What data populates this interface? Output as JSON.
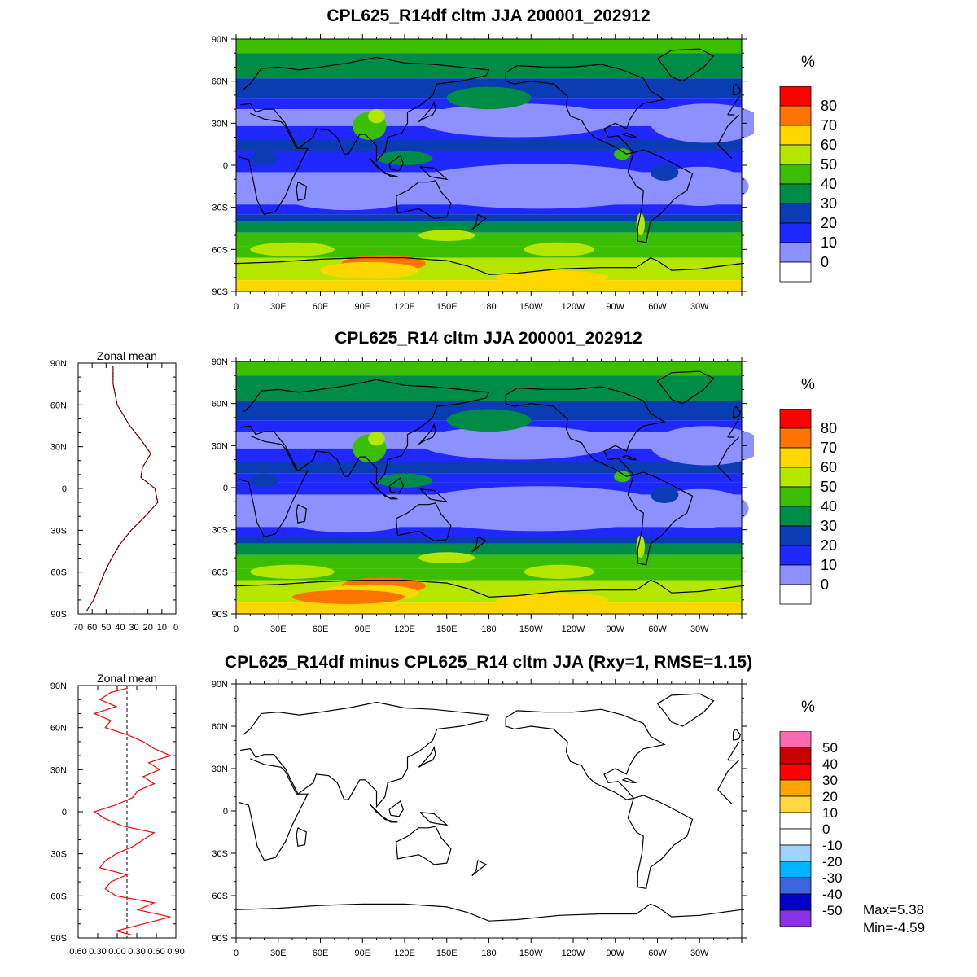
{
  "panels": [
    {
      "id": "top",
      "title": "CPL625_R14df cltm JJA 200001_202912",
      "colorbar": {
        "unit": "%",
        "labels": [
          "80",
          "70",
          "60",
          "50",
          "40",
          "30",
          "20",
          "10",
          "0"
        ],
        "colors": [
          "#ff0000",
          "#ff7300",
          "#ffd700",
          "#b4e600",
          "#3cbe00",
          "#008c46",
          "#0a3cb4",
          "#1e28ff",
          "#8c91ff",
          "#ffffff"
        ]
      }
    },
    {
      "id": "middle",
      "title": "CPL625_R14 cltm JJA 200001_202912",
      "zonal_title": "Zonal mean",
      "zonal_xticks": [
        "70",
        "60",
        "50",
        "40",
        "30",
        "20",
        "10",
        "0"
      ],
      "colorbar": {
        "unit": "%",
        "labels": [
          "80",
          "70",
          "60",
          "50",
          "40",
          "30",
          "20",
          "10",
          "0"
        ],
        "colors": [
          "#ff0000",
          "#ff7300",
          "#ffd700",
          "#b4e600",
          "#3cbe00",
          "#008c46",
          "#0a3cb4",
          "#1e28ff",
          "#8c91ff",
          "#ffffff"
        ]
      }
    },
    {
      "id": "bottom",
      "title": "CPL625_R14df minus CPL625_R14 cltm JJA (Rxy=1, RMSE=1.15)",
      "zonal_title": "Zonal mean",
      "zonal_xticks": [
        "0.60",
        "0.30",
        "0.00",
        "0.30",
        "0.60",
        "0.90"
      ],
      "colorbar": {
        "unit": "%",
        "labels": [
          "50",
          "40",
          "30",
          "20",
          "10",
          "0",
          "-10",
          "-20",
          "-30",
          "-40",
          "-50"
        ],
        "colors": [
          "#ff69b4",
          "#c80000",
          "#ff0000",
          "#ffa500",
          "#ffd740",
          "#ffffff",
          "#ffffff",
          "#a0d2ff",
          "#00b4ff",
          "#3c64dc",
          "#0000c8",
          "#8c32e6"
        ]
      },
      "stats": {
        "max": "Max=5.38",
        "min": "Min=-4.59"
      }
    }
  ],
  "map_axes": {
    "lat_labels": [
      "90N",
      "60N",
      "30N",
      "0",
      "30S",
      "60S",
      "90S"
    ],
    "lon_labels": [
      "0",
      "30E",
      "60E",
      "90E",
      "120E",
      "150E",
      "180",
      "150W",
      "120W",
      "90W",
      "60W",
      "30W"
    ]
  },
  "chart_data": [
    {
      "type": "heatmap",
      "title": "CPL625_R14df cltm JJA 200001_202912",
      "variable": "cltm",
      "unit": "%",
      "contour_levels": [
        0,
        10,
        20,
        30,
        40,
        50,
        60,
        70,
        80
      ],
      "zonal_band_approx": [
        {
          "lat_range": [
            "60N",
            "90N"
          ],
          "value": 40
        },
        {
          "lat_range": [
            "30N",
            "60N"
          ],
          "value": 20
        },
        {
          "lat_range": [
            "10N",
            "30N"
          ],
          "value": 10
        },
        {
          "lat_range": [
            "0",
            "10N"
          ],
          "value": 20
        },
        {
          "lat_range": [
            "30S",
            "0"
          ],
          "value": 5
        },
        {
          "lat_range": [
            "60S",
            "30S"
          ],
          "value": 40
        },
        {
          "lat_range": [
            "90S",
            "60S"
          ],
          "value": 60
        }
      ]
    },
    {
      "type": "heatmap",
      "title": "CPL625_R14 cltm JJA 200001_202912",
      "variable": "cltm",
      "unit": "%",
      "contour_levels": [
        0,
        10,
        20,
        30,
        40,
        50,
        60,
        70,
        80
      ]
    },
    {
      "type": "line",
      "title": "Zonal mean",
      "xlim": [
        70,
        0
      ],
      "ylim": [
        "90S",
        "90N"
      ],
      "y": [
        -88,
        -80,
        -70,
        -60,
        -50,
        -40,
        -30,
        -20,
        -10,
        0,
        8,
        15,
        25,
        35,
        45,
        60,
        75,
        88
      ],
      "x": [
        64,
        59,
        55,
        51,
        46,
        40,
        32,
        22,
        13,
        15,
        25,
        24,
        18,
        25,
        33,
        42,
        45,
        45
      ]
    },
    {
      "type": "heatmap",
      "title": "CPL625_R14df minus CPL625_R14 cltm JJA (Rxy=1, RMSE=1.15)",
      "variable": "cltm difference",
      "unit": "%",
      "contour_levels": [
        -50,
        -40,
        -30,
        -20,
        -10,
        0,
        10,
        20,
        30,
        40,
        50
      ],
      "max": 5.38,
      "min": -4.59
    },
    {
      "type": "line",
      "title": "Zonal mean",
      "xlim": [
        -0.9,
        0.9
      ],
      "ylim": [
        "90S",
        "90N"
      ],
      "y": [
        -88,
        -85,
        -80,
        -75,
        -70,
        -65,
        -60,
        -55,
        -50,
        -45,
        -40,
        -35,
        -30,
        -25,
        -20,
        -15,
        -10,
        -5,
        0,
        5,
        10,
        15,
        20,
        25,
        30,
        35,
        40,
        45,
        50,
        55,
        60,
        65,
        70,
        75,
        80,
        85,
        88
      ],
      "x": [
        0.1,
        -0.2,
        0.3,
        0.8,
        0.2,
        0.5,
        -0.2,
        -0.4,
        -0.3,
        0.0,
        -0.5,
        -0.4,
        -0.2,
        0.1,
        0.3,
        0.5,
        -0.1,
        -0.4,
        -0.6,
        -0.2,
        0.1,
        0.2,
        0.5,
        0.3,
        0.6,
        0.4,
        0.8,
        0.5,
        0.3,
        0.0,
        -0.4,
        -0.3,
        -0.6,
        -0.2,
        -0.5,
        -0.3,
        0.0
      ]
    }
  ]
}
